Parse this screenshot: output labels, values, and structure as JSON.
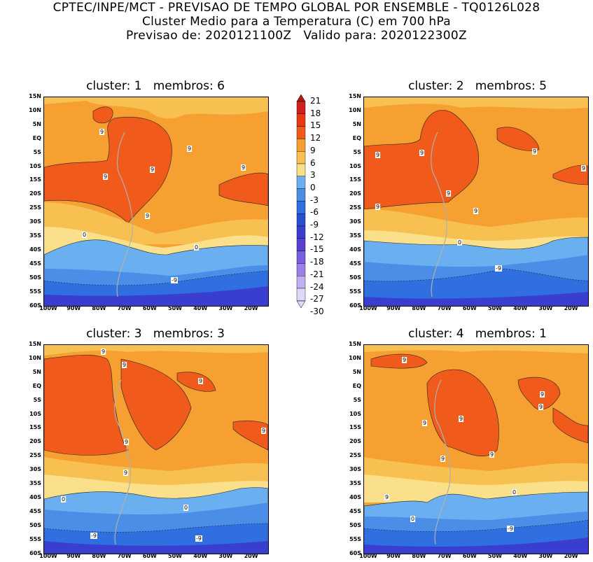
{
  "title": {
    "line1": "CPTEC/INPE/MCT - PREVISAO DE TEMPO GLOBAL POR ENSEMBLE - TQ0126L028",
    "line2": "Cluster Medio para a Temperatura (C) em 700 hPa",
    "line3": "Previsao de: 2020121100Z   Valido para: 2020122300Z"
  },
  "colors": {
    "c21": "#b01818",
    "c18": "#d02020",
    "c15": "#e83a10",
    "c12": "#f05a1a",
    "c9": "#f5a030",
    "c6": "#f8c050",
    "c3": "#fae08a",
    "m3": "#6ab0f0",
    "m6": "#4a8ee8",
    "m9": "#2f6fe0",
    "m12": "#2450d0",
    "m15": "#3a3ed0",
    "m18": "#5a40d0",
    "m21": "#7a60e0",
    "m24": "#9a80e8",
    "m27": "#c0b0f0",
    "m30": "#e0d8f8"
  },
  "colorbar": {
    "labels": [
      "21",
      "18",
      "15",
      "12",
      "9",
      "6",
      "3",
      "0",
      "-3",
      "-6",
      "-9",
      "-12",
      "-15",
      "-18",
      "-21",
      "-24",
      "-27",
      "-30"
    ]
  },
  "axes": {
    "lat_ticks": [
      "15N",
      "10N",
      "5N",
      "EQ",
      "5S",
      "10S",
      "15S",
      "20S",
      "25S",
      "30S",
      "35S",
      "40S",
      "45S",
      "50S",
      "55S",
      "60S"
    ],
    "lon_ticks": [
      "100W",
      "90W",
      "80W",
      "70W",
      "60W",
      "50W",
      "40W",
      "30W",
      "20W"
    ]
  },
  "panels": [
    {
      "title": "cluster: 1   membros: 6",
      "labels": [
        "9",
        "9",
        "9",
        "9",
        "9",
        "9",
        "0",
        "0",
        "-9"
      ]
    },
    {
      "title": "cluster: 2   membros: 5",
      "labels": [
        "9",
        "9",
        "9",
        "9",
        "9",
        "9",
        "9",
        "0",
        "-9"
      ]
    },
    {
      "title": "cluster: 3   membros: 3",
      "labels": [
        "9",
        "9",
        "9",
        "9",
        "9",
        "9",
        "0",
        "0",
        "-9",
        "-9"
      ]
    },
    {
      "title": "cluster: 4   membros: 1",
      "labels": [
        "9",
        "9",
        "9",
        "9",
        "9",
        "9",
        "9",
        "9",
        "0",
        "0",
        "-9"
      ]
    }
  ]
}
